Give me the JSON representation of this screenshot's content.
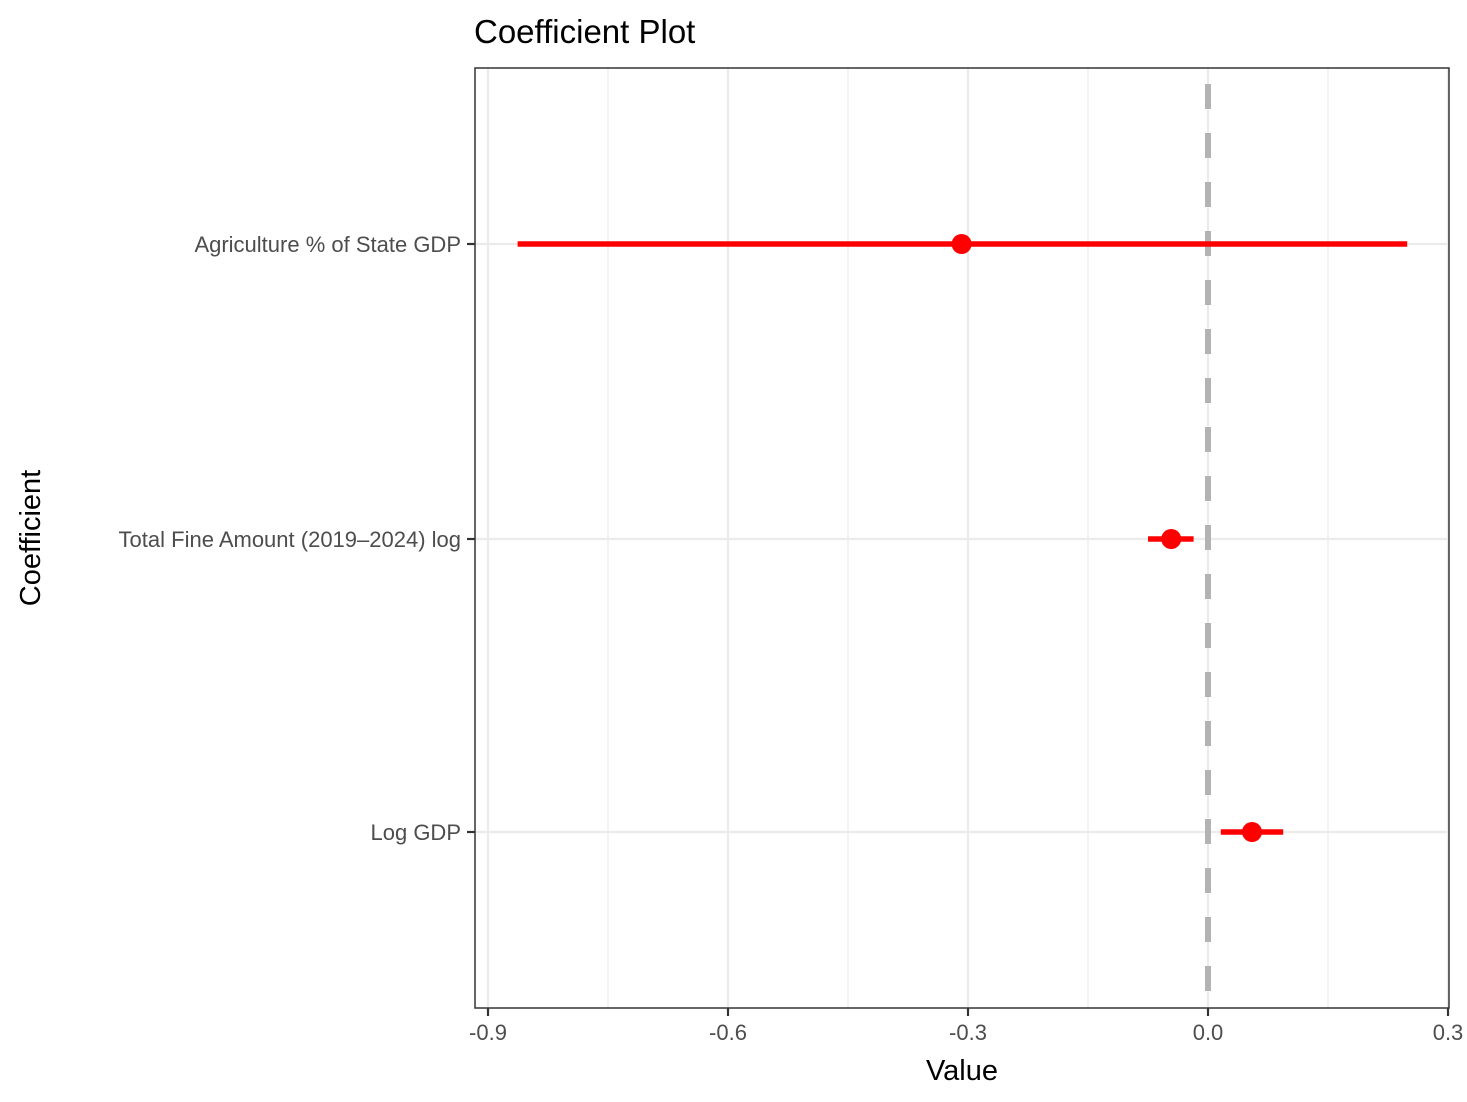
{
  "chart_data": {
    "type": "coefficient-plot",
    "title": "Coefficient Plot",
    "xlabel": "Value",
    "ylabel": "Coefficient",
    "xlim": [
      -0.92,
      0.3
    ],
    "x_ticks": [
      -0.9,
      -0.6,
      -0.3,
      0.0,
      0.3
    ],
    "x_tick_labels": [
      "-0.9",
      "-0.6",
      "-0.3",
      "0.0",
      "0.3"
    ],
    "grid": true,
    "reference_line": {
      "x": 0.0,
      "style": "dashed",
      "color": "#b3b3b3"
    },
    "point_color": "#ff0000",
    "categories": [
      "Agriculture % of State GDP",
      "Total Fine Amount (2019–2024) log",
      "Log GDP"
    ],
    "series": [
      {
        "name": "Agriculture % of State GDP",
        "estimate": -0.308,
        "lower": -0.863,
        "upper": 0.249
      },
      {
        "name": "Total Fine Amount (2019–2024) log",
        "estimate": -0.046,
        "lower": -0.075,
        "upper": -0.018
      },
      {
        "name": "Log GDP",
        "estimate": 0.055,
        "lower": 0.016,
        "upper": 0.094
      }
    ]
  }
}
